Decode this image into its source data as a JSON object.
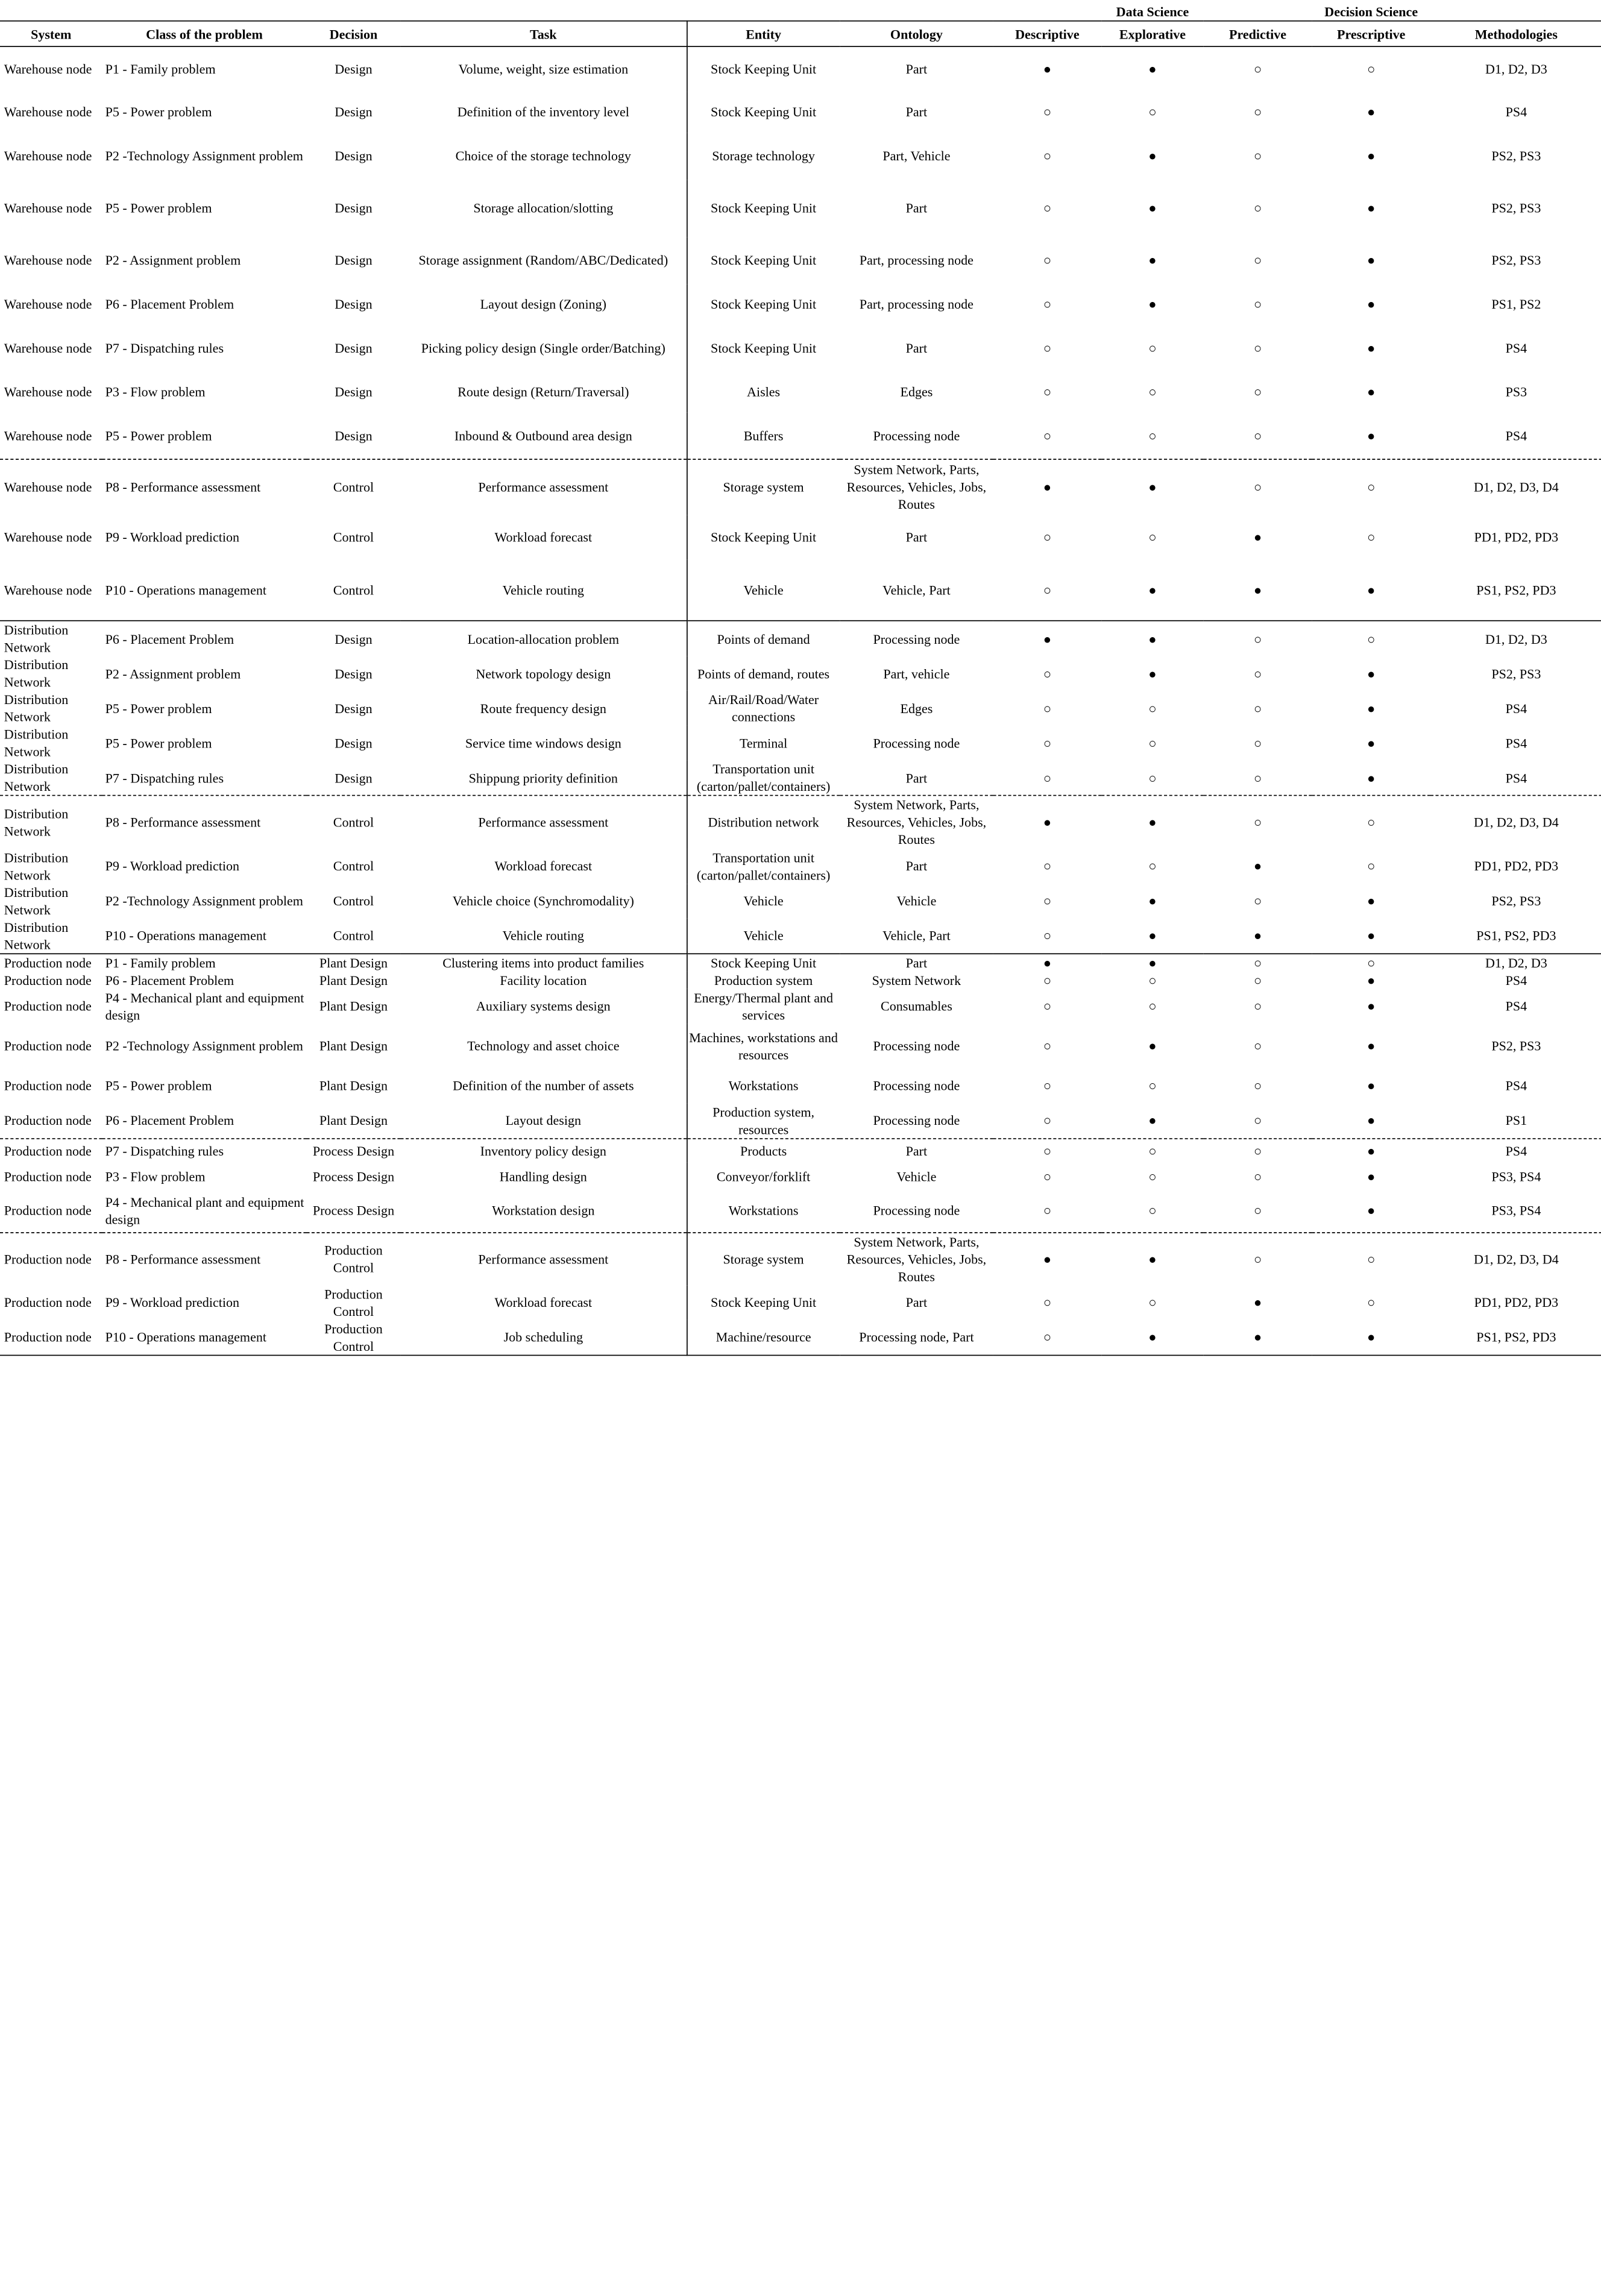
{
  "headers": {
    "group_data_science": "Data Science",
    "group_decision_science": "Decision Science",
    "system": "System",
    "class": "Class of the problem",
    "decision": "Decision",
    "task": "Task",
    "entity": "Entity",
    "ontology": "Ontology",
    "descriptive": "Descriptive",
    "explorative": "Explorative",
    "predictive": "Predictive",
    "prescriptive": "Prescriptive",
    "methodologies": "Methodologies"
  },
  "symbols": {
    "filled": "●",
    "open": "○"
  },
  "rows": [
    {
      "system": "Warehouse node",
      "class": "P1 - Family problem",
      "decision": "Design",
      "task": "Volume, weight, size estimation",
      "entity": "Stock Keeping Unit",
      "ontology": "Part",
      "d": "●",
      "e": "●",
      "p": "○",
      "s": "○",
      "methods": "D1, D2, D3"
    },
    {
      "system": "Warehouse node",
      "class": "P5 - Power problem",
      "decision": "Design",
      "task": "Definition of the inventory level",
      "entity": "Stock Keeping Unit",
      "ontology": "Part",
      "d": "○",
      "e": "○",
      "p": "○",
      "s": "●",
      "methods": "PS4"
    },
    {
      "system": "Warehouse node",
      "class": "P2 -Technology Assignment problem",
      "decision": "Design",
      "task": "Choice of the storage technology",
      "entity": "Storage technology",
      "ontology": "Part, Vehicle",
      "d": "○",
      "e": "●",
      "p": "○",
      "s": "●",
      "methods": "PS2, PS3"
    },
    {
      "system": "Warehouse node",
      "class": "P5 - Power problem",
      "decision": "Design",
      "task": "Storage allocation/slotting",
      "entity": "Stock Keeping Unit",
      "ontology": "Part",
      "d": "○",
      "e": "●",
      "p": "○",
      "s": "●",
      "methods": "PS2, PS3"
    },
    {
      "system": "Warehouse node",
      "class": "P2 - Assignment problem",
      "decision": "Design",
      "task": "Storage assignment (Random/ABC/Dedicated)",
      "entity": "Stock Keeping Unit",
      "ontology": "Part, processing node",
      "d": "○",
      "e": "●",
      "p": "○",
      "s": "●",
      "methods": "PS2, PS3"
    },
    {
      "system": "Warehouse node",
      "class": "P6 - Placement Problem",
      "decision": "Design",
      "task": "Layout design (Zoning)",
      "entity": "Stock Keeping Unit",
      "ontology": "Part, processing node",
      "d": "○",
      "e": "●",
      "p": "○",
      "s": "●",
      "methods": "PS1, PS2"
    },
    {
      "system": "Warehouse node",
      "class": "P7 - Dispatching rules",
      "decision": "Design",
      "task": "Picking policy design (Single order/Batching)",
      "entity": "Stock Keeping Unit",
      "ontology": "Part",
      "d": "○",
      "e": "○",
      "p": "○",
      "s": "●",
      "methods": "PS4"
    },
    {
      "system": "Warehouse node",
      "class": "P3 - Flow problem",
      "decision": "Design",
      "task": "Route design (Return/Traversal)",
      "entity": "Aisles",
      "ontology": "Edges",
      "d": "○",
      "e": "○",
      "p": "○",
      "s": "●",
      "methods": "PS3"
    },
    {
      "system": "Warehouse node",
      "class": "P5 - Power problem",
      "decision": "Design",
      "task": "Inbound & Outbound area design",
      "entity": "Buffers",
      "ontology": "Processing node",
      "d": "○",
      "e": "○",
      "p": "○",
      "s": "●",
      "methods": "PS4"
    },
    {
      "system": "Warehouse node",
      "class": "P8 - Performance assessment",
      "decision": "Control",
      "task": "Performance assessment",
      "entity": "Storage system",
      "ontology": "System Network, Parts, Resources, Vehicles, Jobs, Routes",
      "d": "●",
      "e": "●",
      "p": "○",
      "s": "○",
      "methods": "D1, D2, D3, D4"
    },
    {
      "system": "Warehouse node",
      "class": "P9 - Workload prediction",
      "decision": "Control",
      "task": "Workload forecast",
      "entity": "Stock Keeping Unit",
      "ontology": "Part",
      "d": "○",
      "e": "○",
      "p": "●",
      "s": "○",
      "methods": "PD1, PD2, PD3"
    },
    {
      "system": "Warehouse node",
      "class": "P10 - Operations management",
      "decision": "Control",
      "task": "Vehicle routing",
      "entity": "Vehicle",
      "ontology": "Vehicle, Part",
      "d": "○",
      "e": "●",
      "p": "●",
      "s": "●",
      "methods": "PS1, PS2, PD3"
    },
    {
      "system": "Distribution Network",
      "class": "P6 - Placement Problem",
      "decision": "Design",
      "task": "Location-allocation problem",
      "entity": "Points of demand",
      "ontology": "Processing node",
      "d": "●",
      "e": "●",
      "p": "○",
      "s": "○",
      "methods": "D1, D2, D3"
    },
    {
      "system": "Distribution Network",
      "class": "P2 - Assignment problem",
      "decision": "Design",
      "task": "Network topology design",
      "entity": "Points of demand, routes",
      "ontology": "Part, vehicle",
      "d": "○",
      "e": "●",
      "p": "○",
      "s": "●",
      "methods": "PS2, PS3"
    },
    {
      "system": "Distribution Network",
      "class": "P5 - Power problem",
      "decision": "Design",
      "task": "Route frequency design",
      "entity": "Air/Rail/Road/Water connections",
      "ontology": "Edges",
      "d": "○",
      "e": "○",
      "p": "○",
      "s": "●",
      "methods": "PS4"
    },
    {
      "system": "Distribution Network",
      "class": "P5 - Power problem",
      "decision": "Design",
      "task": "Service time windows design",
      "entity": "Terminal",
      "ontology": "Processing node",
      "d": "○",
      "e": "○",
      "p": "○",
      "s": "●",
      "methods": "PS4"
    },
    {
      "system": "Distribution Network",
      "class": "P7 - Dispatching rules",
      "decision": "Design",
      "task": "Shippung priority definition",
      "entity": "Transportation unit (carton/pallet/containers)",
      "ontology": "Part",
      "d": "○",
      "e": "○",
      "p": "○",
      "s": "●",
      "methods": "PS4"
    },
    {
      "system": "Distribution Network",
      "class": "P8 - Performance assessment",
      "decision": "Control",
      "task": "Performance assessment",
      "entity": "Distribution network",
      "ontology": "System Network, Parts, Resources, Vehicles, Jobs, Routes",
      "d": "●",
      "e": "●",
      "p": "○",
      "s": "○",
      "methods": "D1, D2, D3, D4"
    },
    {
      "system": "Distribution Network",
      "class": "P9 - Workload prediction",
      "decision": "Control",
      "task": "Workload forecast",
      "entity": "Transportation unit (carton/pallet/containers)",
      "ontology": "Part",
      "d": "○",
      "e": "○",
      "p": "●",
      "s": "○",
      "methods": "PD1, PD2, PD3"
    },
    {
      "system": "Distribution Network",
      "class": "P2 -Technology Assignment problem",
      "decision": "Control",
      "task": "Vehicle choice (Synchromodality)",
      "entity": "Vehicle",
      "ontology": "Vehicle",
      "d": "○",
      "e": "●",
      "p": "○",
      "s": "●",
      "methods": "PS2, PS3"
    },
    {
      "system": "Distribution Network",
      "class": "P10 - Operations management",
      "decision": "Control",
      "task": "Vehicle routing",
      "entity": "Vehicle",
      "ontology": "Vehicle, Part",
      "d": "○",
      "e": "●",
      "p": "●",
      "s": "●",
      "methods": "PS1, PS2, PD3"
    },
    {
      "system": "Production node",
      "class": "P1 - Family problem",
      "decision": "Plant Design",
      "task": "Clustering items into product families",
      "entity": "Stock Keeping Unit",
      "ontology": "Part",
      "d": "●",
      "e": "●",
      "p": "○",
      "s": "○",
      "methods": "D1, D2, D3"
    },
    {
      "system": "Production node",
      "class": "P6 - Placement Problem",
      "decision": "Plant Design",
      "task": "Facility location",
      "entity": "Production system",
      "ontology": "System Network",
      "d": "○",
      "e": "○",
      "p": "○",
      "s": "●",
      "methods": "PS4"
    },
    {
      "system": "Production node",
      "class": "P4 - Mechanical plant and equipment design",
      "decision": "Plant Design",
      "task": "Auxiliary systems design",
      "entity": "Energy/Thermal plant and services",
      "ontology": "Consumables",
      "d": "○",
      "e": "○",
      "p": "○",
      "s": "●",
      "methods": "PS4"
    },
    {
      "system": "Production node",
      "class": "P2 -Technology Assignment problem",
      "decision": "Plant Design",
      "task": "Technology and asset choice",
      "entity": "Machines, workstations and resources",
      "ontology": "Processing node",
      "d": "○",
      "e": "●",
      "p": "○",
      "s": "●",
      "methods": "PS2, PS3"
    },
    {
      "system": "Production node",
      "class": "P5 - Power problem",
      "decision": "Plant Design",
      "task": "Definition of the number of assets",
      "entity": "Workstations",
      "ontology": "Processing node",
      "d": "○",
      "e": "○",
      "p": "○",
      "s": "●",
      "methods": "PS4"
    },
    {
      "system": "Production node",
      "class": "P6 - Placement Problem",
      "decision": "Plant Design",
      "task": "Layout design",
      "entity": "Production system, resources",
      "ontology": "Processing node",
      "d": "○",
      "e": "●",
      "p": "○",
      "s": "●",
      "methods": "PS1"
    },
    {
      "system": "Production node",
      "class": "P7 - Dispatching rules",
      "decision": "Process Design",
      "task": "Inventory policy design",
      "entity": "Products",
      "ontology": "Part",
      "d": "○",
      "e": "○",
      "p": "○",
      "s": "●",
      "methods": "PS4"
    },
    {
      "system": "Production node",
      "class": "P3 - Flow problem",
      "decision": "Process Design",
      "task": "Handling design",
      "entity": "Conveyor/forklift",
      "ontology": "Vehicle",
      "d": "○",
      "e": "○",
      "p": "○",
      "s": "●",
      "methods": "PS3, PS4"
    },
    {
      "system": "Production node",
      "class": "P4 - Mechanical plant and equipment design",
      "decision": "Process Design",
      "task": "Workstation design",
      "entity": "Workstations",
      "ontology": "Processing node",
      "d": "○",
      "e": "○",
      "p": "○",
      "s": "●",
      "methods": "PS3, PS4"
    },
    {
      "system": "Production node",
      "class": "P8 - Performance assessment",
      "decision": "Production Control",
      "task": "Performance assessment",
      "entity": "Storage system",
      "ontology": "System Network, Parts, Resources, Vehicles, Jobs, Routes",
      "d": "●",
      "e": "●",
      "p": "○",
      "s": "○",
      "methods": "D1, D2, D3, D4"
    },
    {
      "system": "Production node",
      "class": "P9 - Workload prediction",
      "decision": "Production Control",
      "task": "Workload forecast",
      "entity": "Stock Keeping Unit",
      "ontology": "Part",
      "d": "○",
      "e": "○",
      "p": "●",
      "s": "○",
      "methods": "PD1, PD2, PD3"
    },
    {
      "system": "Production node",
      "class": "P10 - Operations management",
      "decision": "Production Control",
      "task": "Job scheduling",
      "entity": "Machine/resource",
      "ontology": "Processing node, Part",
      "d": "○",
      "e": "●",
      "p": "●",
      "s": "●",
      "methods": "PS1, PS2, PD3"
    }
  ]
}
